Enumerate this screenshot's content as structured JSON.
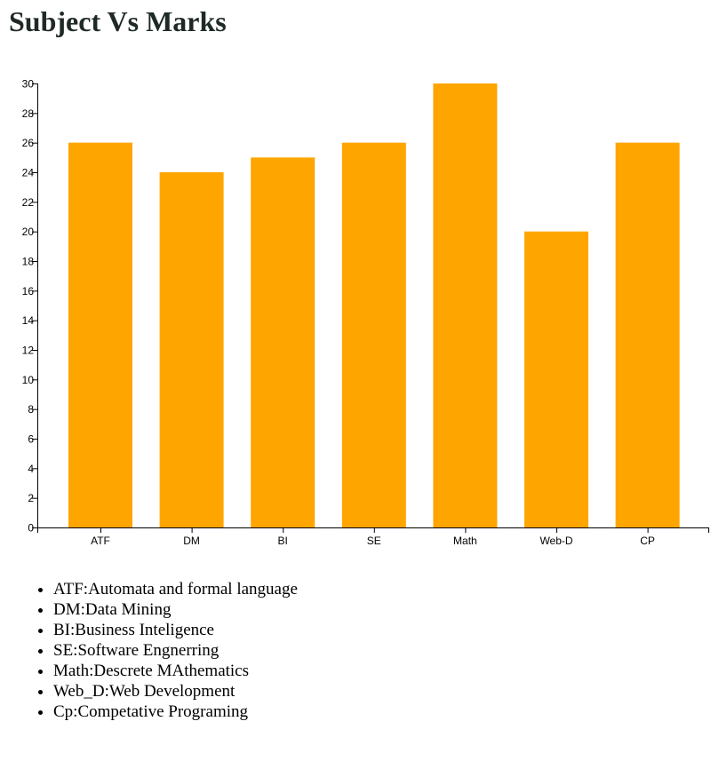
{
  "page": {
    "title": "Subject Vs Marks"
  },
  "colors": {
    "bar": "#ffa500",
    "axis": "#000000"
  },
  "chart_data": {
    "type": "bar",
    "title": "Subject Vs Marks",
    "xlabel": "",
    "ylabel": "",
    "categories": [
      "ATF",
      "DM",
      "BI",
      "SE",
      "Math",
      "Web-D",
      "CP"
    ],
    "values": [
      26,
      24,
      25,
      26,
      30,
      20,
      26
    ],
    "ylim": [
      0,
      30
    ],
    "yticks": [
      0,
      2,
      4,
      6,
      8,
      10,
      12,
      14,
      16,
      18,
      20,
      22,
      24,
      26,
      28,
      30
    ],
    "grid": false,
    "legend": "none"
  },
  "legend_items": [
    "ATF:Automata and formal language",
    "DM:Data Mining",
    "BI:Business Inteligence",
    "SE:Software Engnerring",
    "Math:Descrete MAthematics",
    "Web_D:Web Development",
    "Cp:Competative Programing"
  ]
}
